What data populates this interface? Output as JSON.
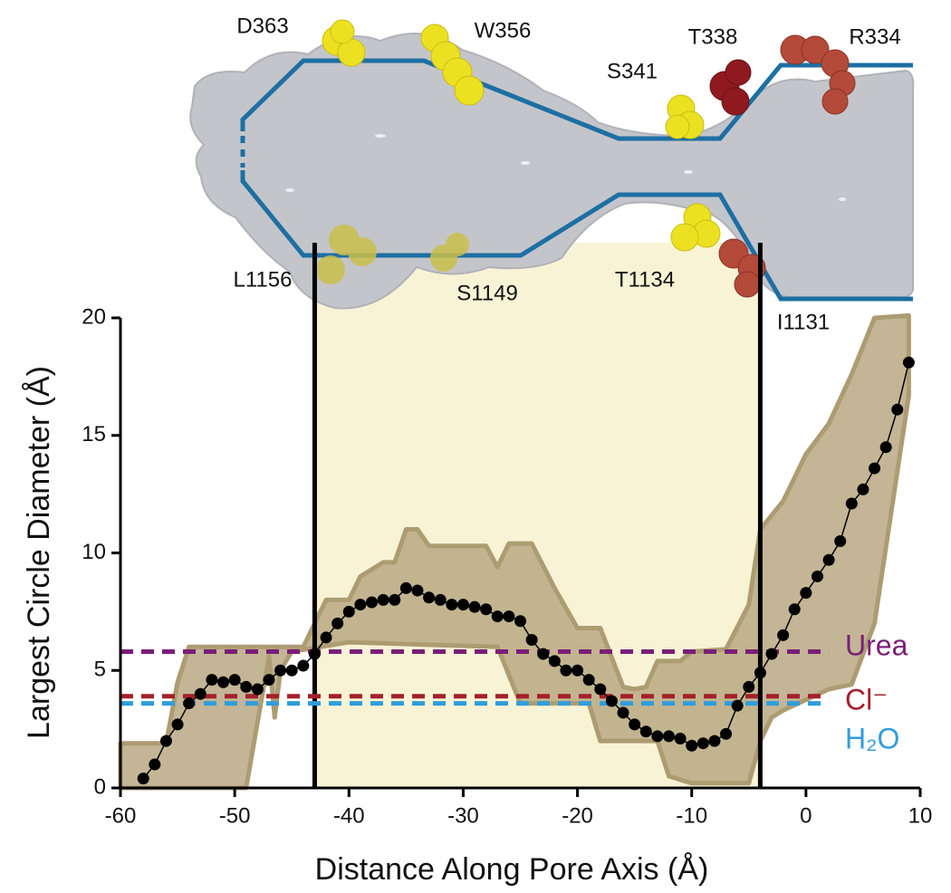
{
  "chart_data": {
    "type": "line",
    "xlabel": "Distance Along Pore Axis (Å)",
    "ylabel": "Largest Circle Diameter (Å)",
    "xlim": [
      -60,
      10
    ],
    "ylim": [
      0,
      20
    ],
    "xticks": [
      -60,
      -50,
      -40,
      -30,
      -20,
      -10,
      0,
      10
    ],
    "yticks": [
      0,
      5,
      10,
      15,
      20
    ],
    "x": [
      -58,
      -57,
      -56,
      -55,
      -54,
      -53,
      -52,
      -51,
      -50,
      -49,
      -48,
      -47,
      -46,
      -45,
      -44,
      -43,
      -42,
      -41,
      -40,
      -39,
      -38,
      -37,
      -36,
      -35,
      -34,
      -33,
      -32,
      -31,
      -30,
      -29,
      -28,
      -27,
      -26,
      -25,
      -24,
      -23,
      -22,
      -21,
      -20,
      -19,
      -18,
      -17,
      -16,
      -15,
      -14,
      -13,
      -12,
      -11,
      -10,
      -9,
      -8,
      -7,
      -6,
      -5,
      -4,
      -3,
      -2,
      -1,
      0,
      1,
      2,
      3,
      4,
      5,
      6,
      7,
      8,
      9
    ],
    "values": [
      0.4,
      1.0,
      2.0,
      2.7,
      3.6,
      4.0,
      4.6,
      4.5,
      4.6,
      4.3,
      4.2,
      4.6,
      5.0,
      5.0,
      5.2,
      5.7,
      6.4,
      7.0,
      7.5,
      7.8,
      7.9,
      8.0,
      8.0,
      8.5,
      8.4,
      8.1,
      8.0,
      7.8,
      7.8,
      7.7,
      7.6,
      7.3,
      7.3,
      7.1,
      6.3,
      5.7,
      5.4,
      5.0,
      5.0,
      4.6,
      4.2,
      3.7,
      3.2,
      2.7,
      2.4,
      2.2,
      2.2,
      2.1,
      1.8,
      1.9,
      2.0,
      2.3,
      3.5,
      4.3,
      4.9,
      5.7,
      6.5,
      7.6,
      8.3,
      9.0,
      9.7,
      10.5,
      12.1,
      12.7,
      13.6,
      14.5,
      16.1,
      18.1
    ],
    "color": "#000000",
    "band": {
      "color": "#b9a882",
      "edge_color": "#ad9c72",
      "x_upper": [
        -60,
        -56,
        -55,
        -54,
        -44,
        -43,
        -42,
        -40,
        -39,
        -37,
        -36,
        -35,
        -34,
        -33,
        -28,
        -27,
        -26,
        -24,
        -22,
        -20,
        -18,
        -16,
        -15,
        -14,
        -13,
        -11,
        -10,
        -7,
        -5,
        -4,
        -2,
        0,
        2,
        4,
        6,
        9
      ],
      "upper": [
        1.9,
        1.9,
        4.5,
        6.0,
        6.0,
        7.0,
        8.0,
        8.0,
        9.0,
        9.6,
        9.6,
        11.0,
        11.0,
        10.3,
        10.3,
        9.4,
        10.4,
        10.4,
        8.5,
        6.8,
        6.8,
        4.3,
        4.2,
        4.3,
        5.4,
        5.4,
        5.8,
        5.9,
        7.8,
        11.0,
        12.2,
        14.2,
        15.5,
        17.6,
        20.0,
        20.1
      ],
      "x_lower": [
        -60,
        -49,
        -47,
        -46.5,
        -46,
        -45,
        -40,
        -27,
        -25,
        -19,
        -18,
        -13,
        -12,
        -10,
        -5,
        -4,
        -3,
        -2,
        2,
        4,
        6,
        9
      ],
      "lower": [
        0,
        0,
        5.6,
        3.0,
        5.0,
        5.8,
        6.2,
        6.0,
        3.6,
        3.6,
        2.0,
        2.0,
        0.5,
        0.2,
        0.2,
        2.0,
        3.0,
        3.3,
        4.2,
        4.4,
        7.0,
        16.7
      ]
    },
    "highlight": {
      "xrange": [
        -43,
        -4
      ],
      "color": "#f9f3d6"
    },
    "reference_lines": [
      {
        "label": "Urea",
        "value": 5.8,
        "color": "#7a1e78"
      },
      {
        "label": "Cl⁻",
        "value": 3.9,
        "color": "#a3202b"
      },
      {
        "label": "H₂O",
        "value": 3.6,
        "color": "#2f9ddb"
      }
    ],
    "annotations": [
      "D363",
      "W356",
      "T338",
      "R334",
      "S341",
      "L1156",
      "S1149",
      "T1134",
      "I1131"
    ]
  }
}
